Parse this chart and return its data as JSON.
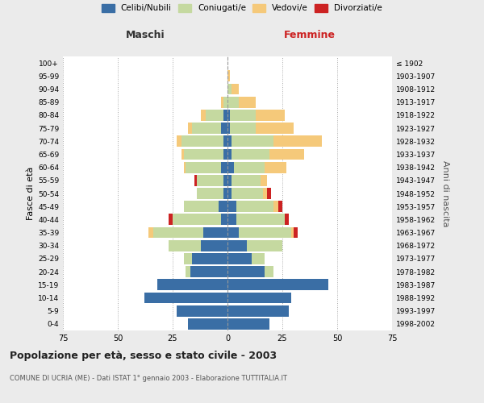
{
  "age_groups": [
    "0-4",
    "5-9",
    "10-14",
    "15-19",
    "20-24",
    "25-29",
    "30-34",
    "35-39",
    "40-44",
    "45-49",
    "50-54",
    "55-59",
    "60-64",
    "65-69",
    "70-74",
    "75-79",
    "80-84",
    "85-89",
    "90-94",
    "95-99",
    "100+"
  ],
  "birth_years": [
    "1998-2002",
    "1993-1997",
    "1988-1992",
    "1983-1987",
    "1978-1982",
    "1973-1977",
    "1968-1972",
    "1963-1967",
    "1958-1962",
    "1953-1957",
    "1948-1952",
    "1943-1947",
    "1938-1942",
    "1933-1937",
    "1928-1932",
    "1923-1927",
    "1918-1922",
    "1913-1917",
    "1908-1912",
    "1903-1907",
    "≤ 1902"
  ],
  "maschi": {
    "celibi": [
      18,
      23,
      38,
      32,
      17,
      16,
      12,
      11,
      3,
      4,
      2,
      2,
      3,
      2,
      2,
      3,
      2,
      0,
      0,
      0,
      0
    ],
    "coniugati": [
      0,
      0,
      0,
      0,
      2,
      4,
      15,
      23,
      22,
      16,
      12,
      12,
      16,
      18,
      19,
      13,
      8,
      2,
      0,
      0,
      0
    ],
    "vedovi": [
      0,
      0,
      0,
      0,
      0,
      0,
      0,
      2,
      0,
      0,
      0,
      0,
      1,
      1,
      2,
      2,
      2,
      1,
      0,
      0,
      0
    ],
    "divorziati": [
      0,
      0,
      0,
      0,
      0,
      0,
      0,
      0,
      2,
      0,
      0,
      1,
      0,
      0,
      0,
      0,
      0,
      0,
      0,
      0,
      0
    ]
  },
  "femmine": {
    "nubili": [
      19,
      28,
      29,
      46,
      17,
      11,
      9,
      5,
      4,
      4,
      2,
      2,
      3,
      2,
      2,
      1,
      1,
      0,
      0,
      0,
      0
    ],
    "coniugate": [
      0,
      0,
      0,
      0,
      4,
      6,
      16,
      24,
      22,
      17,
      14,
      13,
      14,
      17,
      19,
      12,
      12,
      5,
      2,
      0,
      0
    ],
    "vedove": [
      0,
      0,
      0,
      0,
      0,
      0,
      0,
      1,
      0,
      2,
      2,
      3,
      10,
      16,
      22,
      17,
      13,
      8,
      3,
      1,
      0
    ],
    "divorziate": [
      0,
      0,
      0,
      0,
      0,
      0,
      0,
      2,
      2,
      2,
      2,
      0,
      0,
      0,
      0,
      0,
      0,
      0,
      0,
      0,
      0
    ]
  },
  "colors": {
    "celibi": "#3a6ea5",
    "coniugati": "#c5d9a0",
    "vedovi": "#f5c97a",
    "divorziati": "#cc2222"
  },
  "xlim": 75,
  "title": "Popolazione per età, sesso e stato civile - 2003",
  "subtitle": "COMUNE DI UCRIA (ME) - Dati ISTAT 1° gennaio 2003 - Elaborazione TUTTITALIA.IT",
  "ylabel_left": "Fasce di età",
  "ylabel_right": "Anni di nascita",
  "xlabel_left": "Maschi",
  "xlabel_right": "Femmine",
  "legend_labels": [
    "Celibi/Nubili",
    "Coniugati/e",
    "Vedovi/e",
    "Divorziati/e"
  ],
  "bg_color": "#ebebeb",
  "plot_bg_color": "#ffffff"
}
